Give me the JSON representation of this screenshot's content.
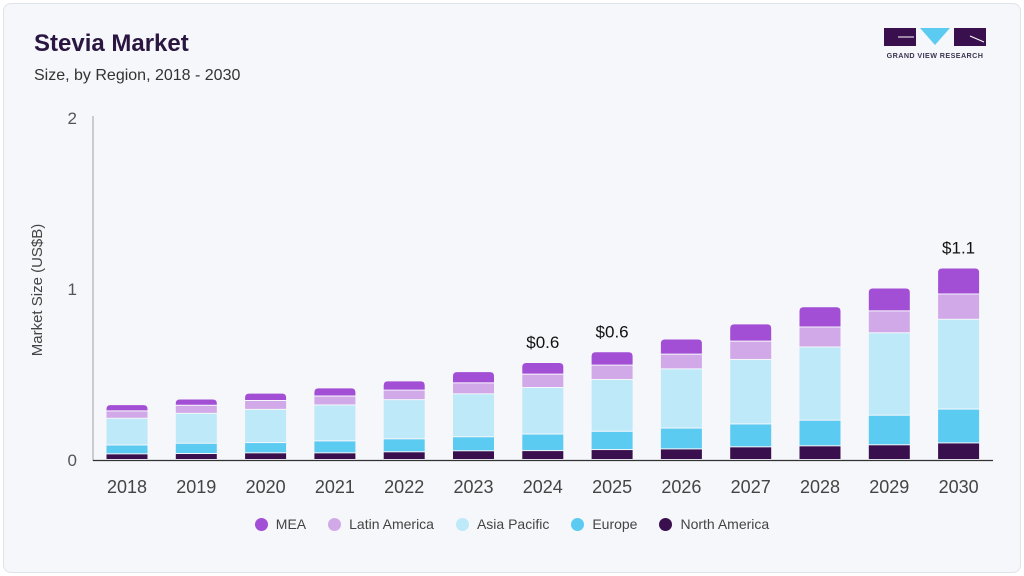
{
  "header": {
    "title": "Stevia Market",
    "subtitle": "Size, by Region, 2018 - 2030"
  },
  "logo": {
    "text": "GRAND VIEW RESEARCH"
  },
  "chart_data": {
    "type": "bar",
    "stacked": true,
    "title": "Stevia Market",
    "subtitle": "Size, by Region, 2018 - 2030",
    "xlabel": "",
    "ylabel": "Market Size (US$B)",
    "ylim": [
      0,
      2
    ],
    "yticks": [
      "0",
      "1",
      "2"
    ],
    "grid": false,
    "legend_position": "bottom",
    "categories": [
      "2018",
      "2019",
      "2020",
      "2021",
      "2022",
      "2023",
      "2024",
      "2025",
      "2026",
      "2027",
      "2028",
      "2029",
      "2030"
    ],
    "series": [
      {
        "name": "North America",
        "color": "#3a0f4d",
        "values": [
          0.033,
          0.035,
          0.039,
          0.039,
          0.045,
          0.051,
          0.052,
          0.058,
          0.062,
          0.074,
          0.08,
          0.086,
          0.097
        ]
      },
      {
        "name": "Europe",
        "color": "#5ccbf2",
        "values": [
          0.052,
          0.06,
          0.06,
          0.07,
          0.076,
          0.082,
          0.097,
          0.107,
          0.122,
          0.134,
          0.15,
          0.173,
          0.198
        ]
      },
      {
        "name": "Asia Pacific",
        "color": "#bde9f8",
        "values": [
          0.156,
          0.175,
          0.194,
          0.21,
          0.229,
          0.251,
          0.272,
          0.303,
          0.346,
          0.377,
          0.428,
          0.482,
          0.525
        ]
      },
      {
        "name": "Latin America",
        "color": "#d2a9e8",
        "values": [
          0.043,
          0.047,
          0.052,
          0.052,
          0.056,
          0.064,
          0.078,
          0.084,
          0.086,
          0.107,
          0.117,
          0.128,
          0.148
        ]
      },
      {
        "name": "MEA",
        "color": "#a24fd6",
        "values": [
          0.037,
          0.037,
          0.043,
          0.048,
          0.054,
          0.066,
          0.068,
          0.078,
          0.089,
          0.101,
          0.118,
          0.134,
          0.152
        ]
      }
    ],
    "data_labels": [
      {
        "category": "2024",
        "text": "$0.6"
      },
      {
        "category": "2025",
        "text": "$0.6"
      },
      {
        "category": "2030",
        "text": "$1.1"
      }
    ],
    "legend": [
      "MEA",
      "Latin America",
      "Asia Pacific",
      "Europe",
      "North America"
    ]
  }
}
